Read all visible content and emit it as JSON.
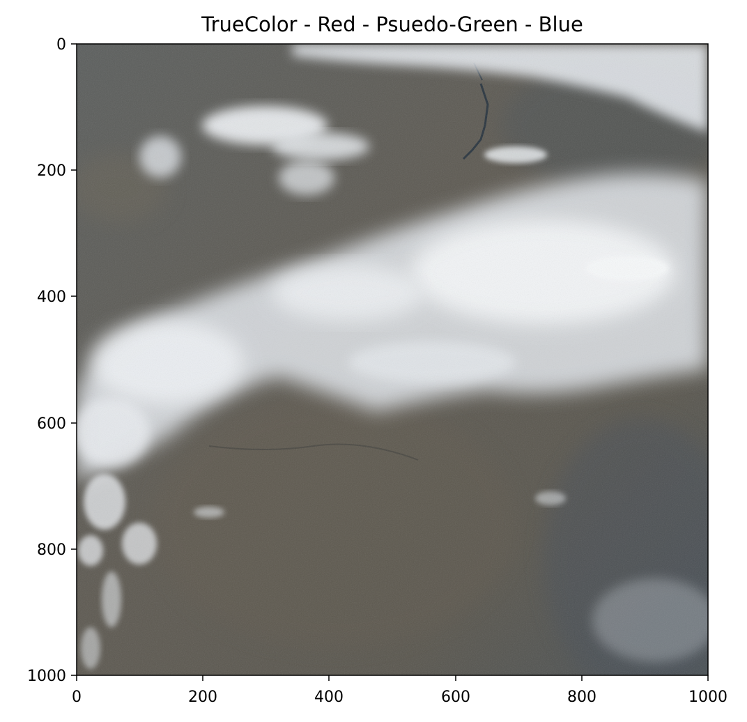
{
  "title": "TrueColor - Red - Psuedo-Green - Blue",
  "colors": {
    "background": "#ffffff",
    "land": "#5a5a55",
    "cloud": "#e9edf2",
    "water": "#2b3640",
    "axis": "#000000"
  },
  "x_axis": {
    "range": [
      0,
      1000
    ],
    "ticks": [
      "0",
      "200",
      "400",
      "600",
      "800",
      "1000"
    ]
  },
  "y_axis": {
    "range": [
      0,
      1000
    ],
    "inverted": true,
    "ticks": [
      "0",
      "200",
      "400",
      "600",
      "800",
      "1000"
    ]
  }
}
